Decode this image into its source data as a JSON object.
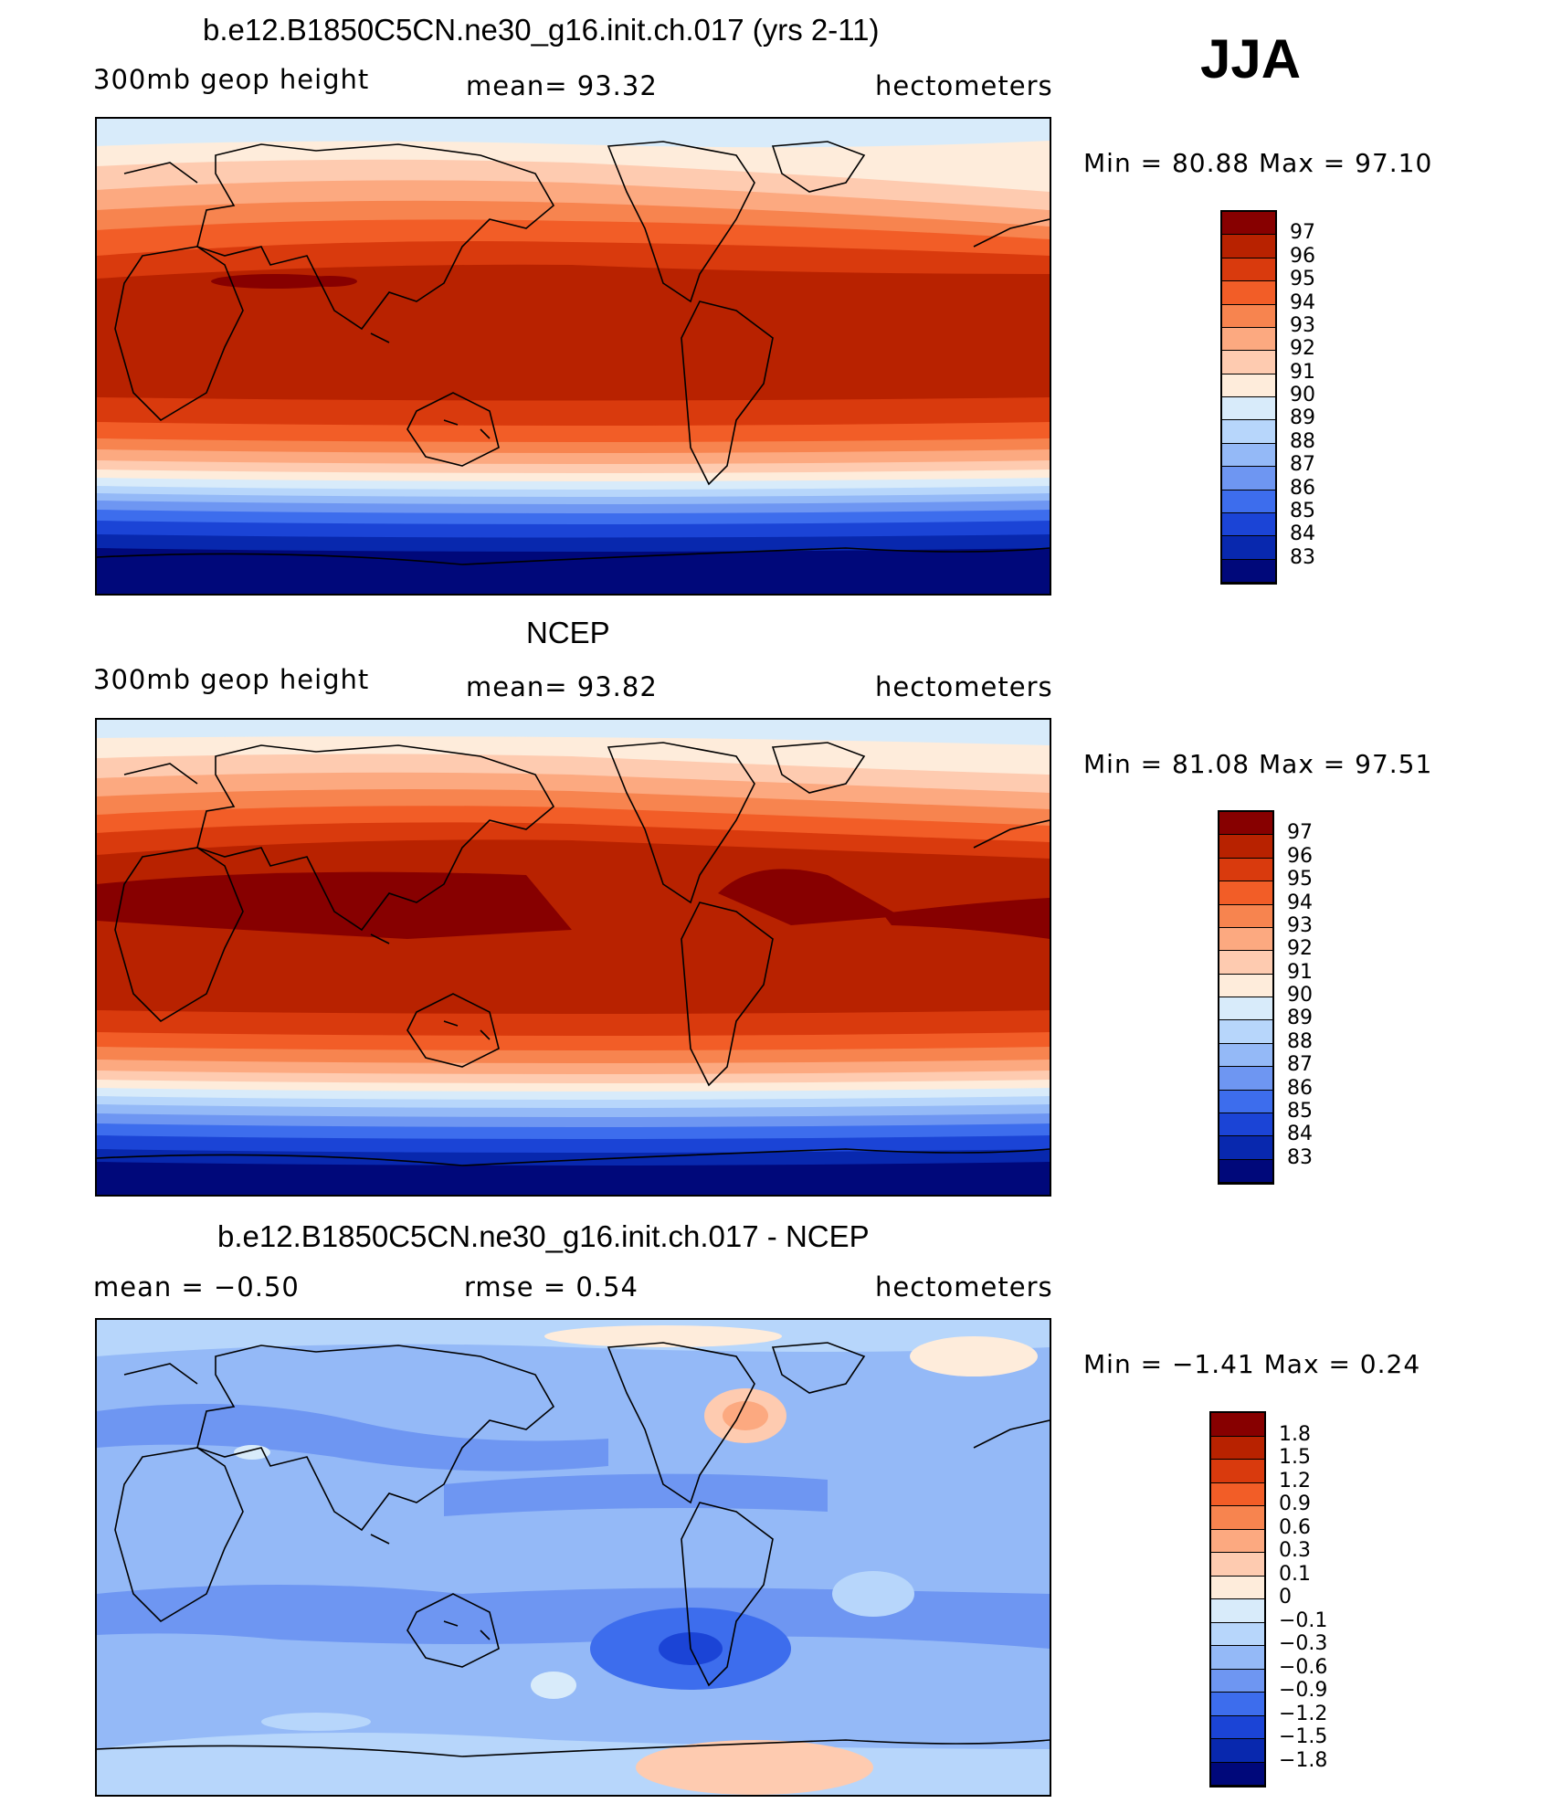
{
  "season": "JJA",
  "panels": [
    {
      "title": "b.e12.B1850C5CN.ne30_g16.init.ch.017 (yrs 2-11)",
      "left_label": "300mb  geop  height",
      "center_label": "mean=   93.32",
      "units": "hectometers",
      "minmax": "Min  =    80.88  Max  =    97.10"
    },
    {
      "title": "NCEP",
      "left_label": "300mb  geop  height",
      "center_label": "mean=   93.82",
      "units": "hectometers",
      "minmax": "Min  =    81.08  Max  =    97.51"
    },
    {
      "title": "b.e12.B1850C5CN.ne30_g16.init.ch.017 - NCEP",
      "left_label": "mean  =    −0.50",
      "center_label": "rmse  =     0.54",
      "units": "hectometers",
      "minmax": "Min  =   −1.41  Max  =     0.24"
    }
  ],
  "legend_levels": [
    "97",
    "96",
    "95",
    "94",
    "93",
    "92",
    "91",
    "90",
    "89",
    "88",
    "87",
    "86",
    "85",
    "84",
    "83"
  ],
  "legend_colors": [
    "#870000",
    "#b82200",
    "#d93a0d",
    "#f25d27",
    "#f7844f",
    "#fca980",
    "#fecbb0",
    "#feecdb",
    "#d8ebfa",
    "#b7d6fb",
    "#94b9f7",
    "#6e96f2",
    "#3d6ded",
    "#1b44d6",
    "#0828ae",
    "#00087a"
  ],
  "diff_legend_levels": [
    "1.8",
    "1.5",
    "1.2",
    "0.9",
    "0.6",
    "0.3",
    "0.1",
    "0",
    "−0.1",
    "−0.3",
    "−0.6",
    "−0.9",
    "−1.2",
    "−1.5",
    "−1.8"
  ],
  "diff_legend_colors": [
    "#870000",
    "#b82200",
    "#d93a0d",
    "#f25d27",
    "#f7844f",
    "#fca980",
    "#fecbb0",
    "#feecdb",
    "#d8ebfa",
    "#b7d6fb",
    "#94b9f7",
    "#6e96f2",
    "#3d6ded",
    "#1b44d6",
    "#0828ae",
    "#00087a"
  ]
}
